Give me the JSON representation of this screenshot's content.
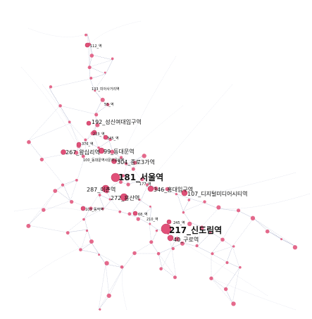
{
  "colors": {
    "node": "#e05078",
    "node_stroke": "#c23a60",
    "edge": "#8a93b8",
    "background": "#ffffff"
  },
  "stations": [
    {
      "id": "s217",
      "label": "217_신도림역",
      "size": "big"
    },
    {
      "id": "s181",
      "label": "181_서울역",
      "size": "big"
    },
    {
      "id": "s287",
      "label": "287_이촌역",
      "size": "mid"
    },
    {
      "id": "s272",
      "label": "272_용산역",
      "size": "mid"
    },
    {
      "id": "s346",
      "label": "346_홍대입구역",
      "size": "mid"
    },
    {
      "id": "s107",
      "label": "107_디지털미디어시티역",
      "size": "mid"
    },
    {
      "id": "s40",
      "label": "40_구로역",
      "size": "mid"
    },
    {
      "id": "s99",
      "label": "99_동대문역",
      "size": "mid"
    },
    {
      "id": "s267",
      "label": "267_왕십리역",
      "size": "mid"
    },
    {
      "id": "s192",
      "label": "192_성신여대입구역",
      "size": "mid"
    },
    {
      "id": "s304",
      "label": "304_종로3가역",
      "size": "mid"
    },
    {
      "id": "s103",
      "label": "103_동작역",
      "size": "mid"
    },
    {
      "id": "s112",
      "label": "112_역",
      "size": "sm"
    },
    {
      "id": "s133",
      "label": "133_미아사거리역",
      "size": "sm"
    },
    {
      "id": "s55",
      "label": "55_역",
      "size": "sm"
    },
    {
      "id": "s223",
      "label": "223_역",
      "size": "sm"
    },
    {
      "id": "s345",
      "label": "345_역",
      "size": "sm"
    },
    {
      "id": "s376",
      "label": "376_역",
      "size": "sm"
    },
    {
      "id": "s100",
      "label": "100_동대문역사문화공원역",
      "size": "sm"
    },
    {
      "id": "s177",
      "label": "177_역",
      "size": "sm"
    },
    {
      "id": "s68",
      "label": "68_역",
      "size": "sm"
    },
    {
      "id": "s210",
      "label": "210_역",
      "size": "sm"
    },
    {
      "id": "s245",
      "label": "245_역",
      "size": "sm"
    }
  ]
}
